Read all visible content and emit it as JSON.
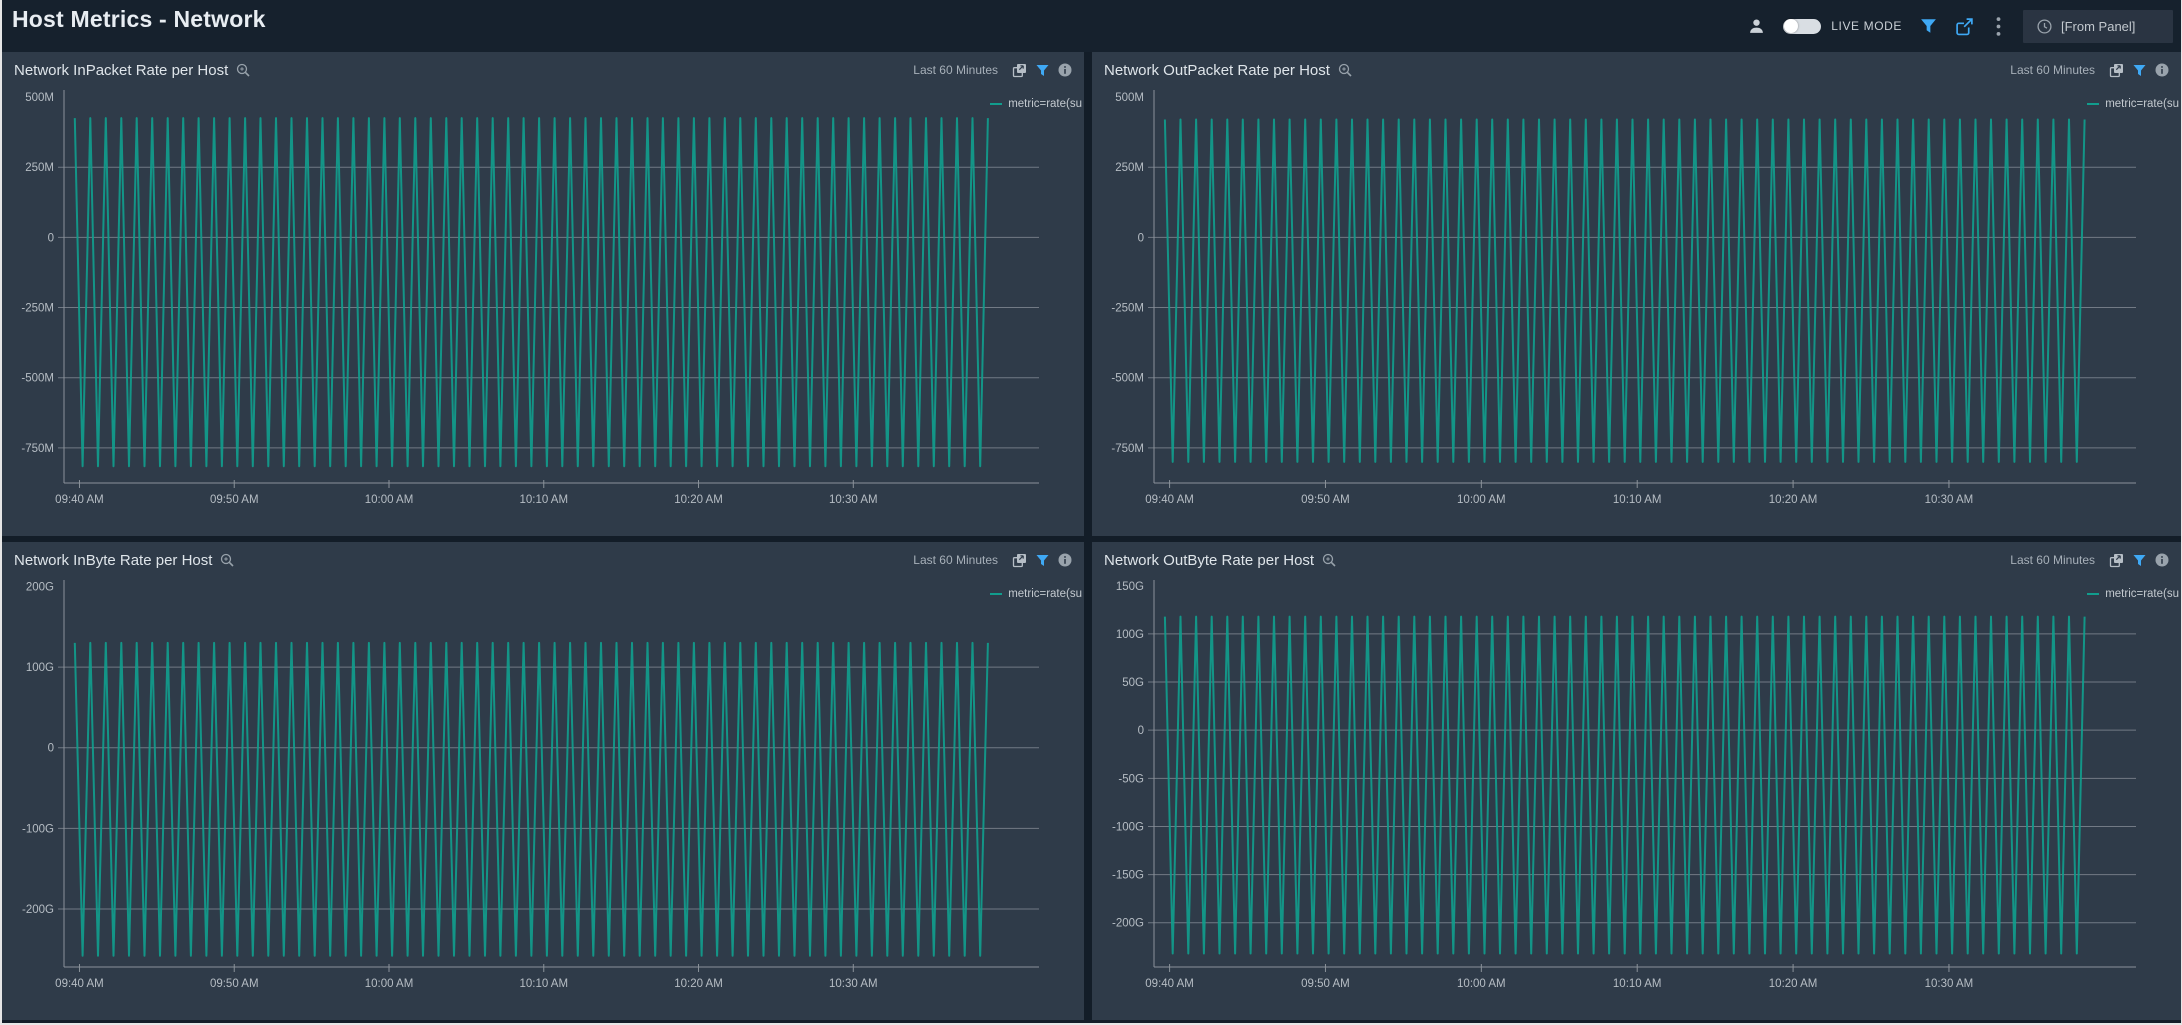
{
  "header": {
    "title": "Host Metrics - Network",
    "live_mode_label": "LIVE MODE",
    "time_range_value": "[From Panel]"
  },
  "icons": {
    "user": "person-icon",
    "live_toggle": "toggle-switch",
    "filter": "funnel-icon",
    "share": "export-arrow-icon",
    "more": "kebab-menu-icon",
    "clock": "clock-icon",
    "panel_zoom": "magnifier-plus-icon",
    "panel_copy": "open-in-new-icon",
    "panel_filter": "funnel-icon",
    "panel_info": "info-circle-icon"
  },
  "colors": {
    "series": "#119D8D",
    "grid": "#7E868F",
    "axis": "#8B929A",
    "tick_label": "#B6BDC4",
    "panel_bg": "#2F3B49",
    "page_bg": "#131D28",
    "header_bg": "#16212D",
    "icon_blue": "#3FA9F5",
    "icon_gray": "#9AA3AC",
    "timebox_bg": "#2A3442"
  },
  "panels": [
    {
      "title": "Network InPacket Rate per Host",
      "time_range": "Last 60 Minutes",
      "legend": "metric=rate(su"
    },
    {
      "title": "Network OutPacket Rate per Host",
      "time_range": "Last 60 Minutes",
      "legend": "metric=rate(su"
    },
    {
      "title": "Network InByte Rate per Host",
      "time_range": "Last 60 Minutes",
      "legend": "metric=rate(su"
    },
    {
      "title": "Network OutByte Rate per Host",
      "time_range": "Last 60 Minutes",
      "legend": "metric=rate(su"
    }
  ],
  "chart_data": [
    {
      "type": "line",
      "title": "Network InPacket Rate per Host",
      "legend_position": "top-right",
      "grid": true,
      "x_total_minutes": 63,
      "x_ticks": [
        {
          "label": "09:40 AM",
          "min": 1
        },
        {
          "label": "09:50 AM",
          "min": 11
        },
        {
          "label": "10:00 AM",
          "min": 21
        },
        {
          "label": "10:10 AM",
          "min": 31
        },
        {
          "label": "10:20 AM",
          "min": 41
        },
        {
          "label": "10:30 AM",
          "min": 51
        }
      ],
      "ylim": [
        -875,
        525
      ],
      "y_unit": "M",
      "y_ticks": [
        {
          "label": "500M",
          "value": 500,
          "grid": false
        },
        {
          "label": "250M",
          "value": 250,
          "grid": true
        },
        {
          "label": "0",
          "value": 0,
          "grid": true
        },
        {
          "label": "-250M",
          "value": -250,
          "grid": true
        },
        {
          "label": "-500M",
          "value": -500,
          "grid": true
        },
        {
          "label": "-750M",
          "value": -750,
          "grid": true
        }
      ],
      "series": [
        {
          "name": "metric=rate(su",
          "waveform": "zigzag",
          "peak": 425,
          "trough": -815,
          "period_min": 1,
          "start_min": 0.7,
          "end_min": 59.7
        }
      ]
    },
    {
      "type": "line",
      "title": "Network OutPacket Rate per Host",
      "legend_position": "top-right",
      "grid": true,
      "x_total_minutes": 63,
      "x_ticks": [
        {
          "label": "09:40 AM",
          "min": 1
        },
        {
          "label": "09:50 AM",
          "min": 11
        },
        {
          "label": "10:00 AM",
          "min": 21
        },
        {
          "label": "10:10 AM",
          "min": 31
        },
        {
          "label": "10:20 AM",
          "min": 41
        },
        {
          "label": "10:30 AM",
          "min": 51
        }
      ],
      "ylim": [
        -875,
        525
      ],
      "y_unit": "M",
      "y_ticks": [
        {
          "label": "500M",
          "value": 500,
          "grid": false
        },
        {
          "label": "250M",
          "value": 250,
          "grid": true
        },
        {
          "label": "0",
          "value": 0,
          "grid": true
        },
        {
          "label": "-250M",
          "value": -250,
          "grid": true
        },
        {
          "label": "-500M",
          "value": -500,
          "grid": true
        },
        {
          "label": "-750M",
          "value": -750,
          "grid": true
        }
      ],
      "series": [
        {
          "name": "metric=rate(su",
          "waveform": "zigzag",
          "peak": 420,
          "trough": -800,
          "period_min": 1,
          "start_min": 0.7,
          "end_min": 59.7
        }
      ]
    },
    {
      "type": "line",
      "title": "Network InByte Rate per Host",
      "legend_position": "top-right",
      "grid": true,
      "x_total_minutes": 63,
      "x_ticks": [
        {
          "label": "09:40 AM",
          "min": 1
        },
        {
          "label": "09:50 AM",
          "min": 11
        },
        {
          "label": "10:00 AM",
          "min": 21
        },
        {
          "label": "10:10 AM",
          "min": 31
        },
        {
          "label": "10:20 AM",
          "min": 41
        },
        {
          "label": "10:30 AM",
          "min": 51
        }
      ],
      "ylim": [
        -272,
        208
      ],
      "y_unit": "G",
      "y_ticks": [
        {
          "label": "200G",
          "value": 200,
          "grid": false
        },
        {
          "label": "100G",
          "value": 100,
          "grid": true
        },
        {
          "label": "0",
          "value": 0,
          "grid": true
        },
        {
          "label": "-100G",
          "value": -100,
          "grid": true
        },
        {
          "label": "-200G",
          "value": -200,
          "grid": true
        }
      ],
      "series": [
        {
          "name": "metric=rate(su",
          "waveform": "zigzag",
          "peak": 130,
          "trough": -258,
          "period_min": 1,
          "start_min": 0.7,
          "end_min": 59.7
        }
      ]
    },
    {
      "type": "line",
      "title": "Network OutByte Rate per Host",
      "legend_position": "top-right",
      "grid": true,
      "x_total_minutes": 63,
      "x_ticks": [
        {
          "label": "09:40 AM",
          "min": 1
        },
        {
          "label": "09:50 AM",
          "min": 11
        },
        {
          "label": "10:00 AM",
          "min": 21
        },
        {
          "label": "10:10 AM",
          "min": 31
        },
        {
          "label": "10:20 AM",
          "min": 41
        },
        {
          "label": "10:30 AM",
          "min": 51
        }
      ],
      "ylim": [
        -246,
        156
      ],
      "y_unit": "G",
      "y_ticks": [
        {
          "label": "150G",
          "value": 150,
          "grid": false
        },
        {
          "label": "100G",
          "value": 100,
          "grid": true
        },
        {
          "label": "50G",
          "value": 50,
          "grid": true
        },
        {
          "label": "0",
          "value": 0,
          "grid": true
        },
        {
          "label": "-50G",
          "value": -50,
          "grid": true
        },
        {
          "label": "-100G",
          "value": -100,
          "grid": true
        },
        {
          "label": "-150G",
          "value": -150,
          "grid": true
        },
        {
          "label": "-200G",
          "value": -200,
          "grid": true
        }
      ],
      "series": [
        {
          "name": "metric=rate(su",
          "waveform": "zigzag",
          "peak": 118,
          "trough": -232,
          "period_min": 1,
          "start_min": 0.7,
          "end_min": 59.7
        }
      ]
    }
  ]
}
